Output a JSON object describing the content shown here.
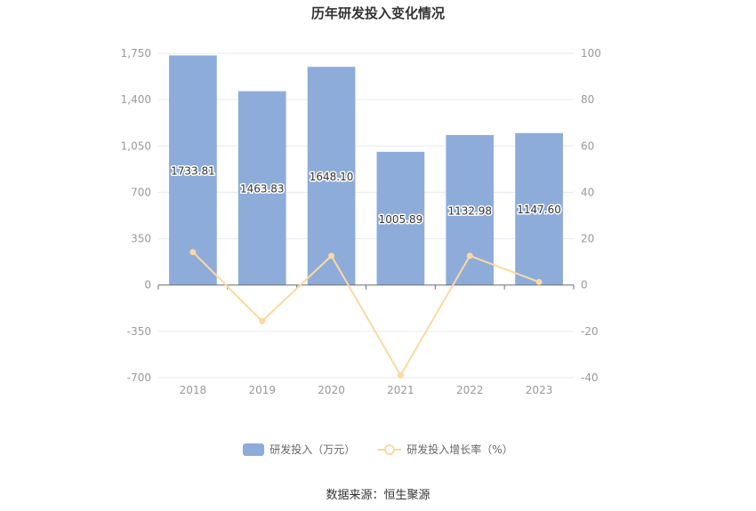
{
  "title": "历年研发投入变化情况",
  "source": "数据来源：恒生聚源",
  "colors": {
    "bar": "#8eacda",
    "line": "#fbd9a0",
    "grid": "#e6e9f0",
    "axis": "#6e7079"
  },
  "chart_data": {
    "type": "bar",
    "title": "历年研发投入变化情况",
    "categories": [
      "2018",
      "2019",
      "2020",
      "2021",
      "2022",
      "2023"
    ],
    "series": [
      {
        "name": "研发投入（万元）",
        "type": "bar",
        "axis": "left",
        "values": [
          1733.81,
          1463.83,
          1648.1,
          1005.89,
          1132.98,
          1147.6
        ],
        "labels": [
          "1733.81",
          "1463.83",
          "1648.10",
          "1005.89",
          "1132.98",
          "1147.60"
        ]
      },
      {
        "name": "研发投入增长率（%）",
        "type": "line",
        "axis": "right",
        "values": [
          14.2,
          -15.6,
          12.6,
          -39.0,
          12.6,
          1.3
        ]
      }
    ],
    "y_left": {
      "min": -700,
      "max": 1750,
      "ticks": [
        -700,
        -350,
        0,
        350,
        700,
        1050,
        1400,
        1750
      ],
      "tick_labels": [
        "-700",
        "-350",
        "0",
        "350",
        "700",
        "1,050",
        "1,400",
        "1,750"
      ]
    },
    "y_right": {
      "min": -40,
      "max": 100,
      "ticks": [
        -40,
        -20,
        0,
        20,
        40,
        60,
        80,
        100
      ],
      "tick_labels": [
        "-40",
        "-20",
        "0",
        "20",
        "40",
        "60",
        "80",
        "100"
      ]
    },
    "grid": true,
    "legend_position": "bottom"
  },
  "legend": [
    {
      "label": "研发投入（万元）",
      "kind": "bar"
    },
    {
      "label": "研发投入增长率（%）",
      "kind": "line"
    }
  ]
}
